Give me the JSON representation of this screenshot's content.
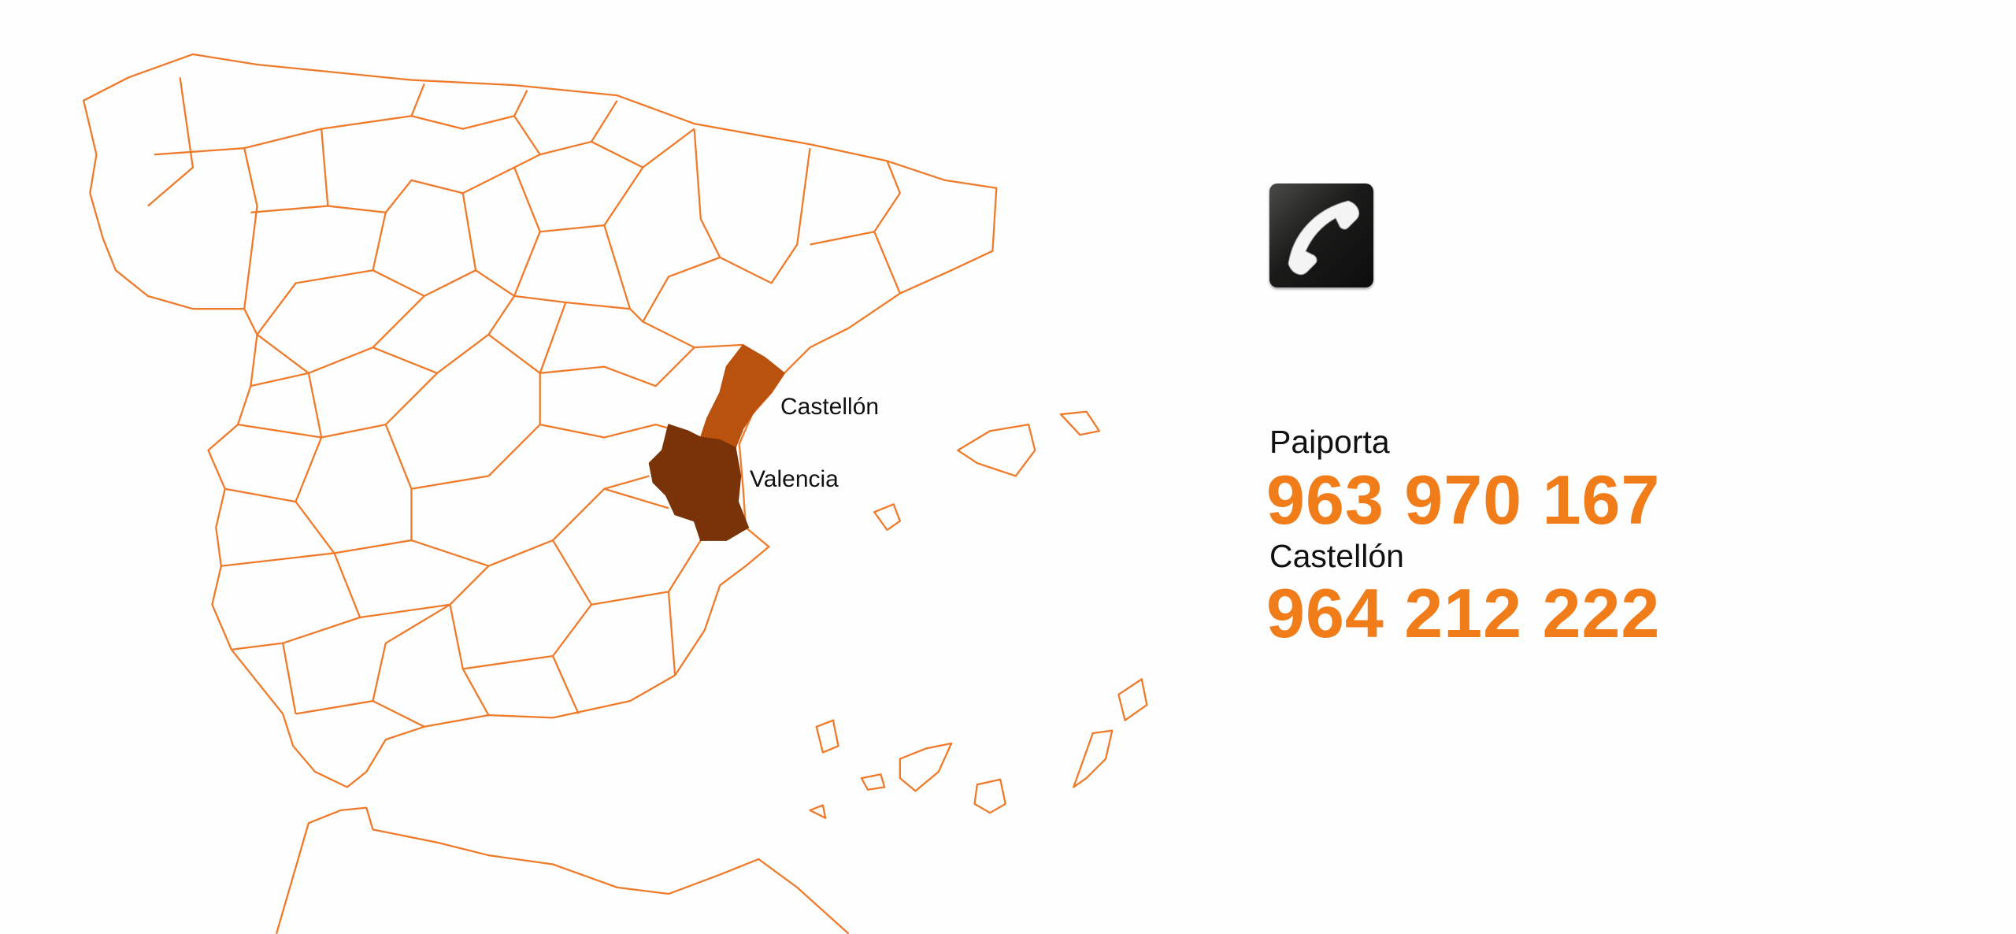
{
  "colors": {
    "accent": "#f07d1a",
    "map_line": "#ee7a2a",
    "castellon_fill": "#b8520e",
    "valencia_fill": "#7a3308"
  },
  "map": {
    "labels": {
      "castellon": "Castellón",
      "valencia": "Valencia"
    }
  },
  "contact": {
    "icon": "phone-icon",
    "entries": [
      {
        "city": "Paiporta",
        "phone": "963 970 167"
      },
      {
        "city": "Castellón",
        "phone": "964 212 222"
      }
    ]
  }
}
